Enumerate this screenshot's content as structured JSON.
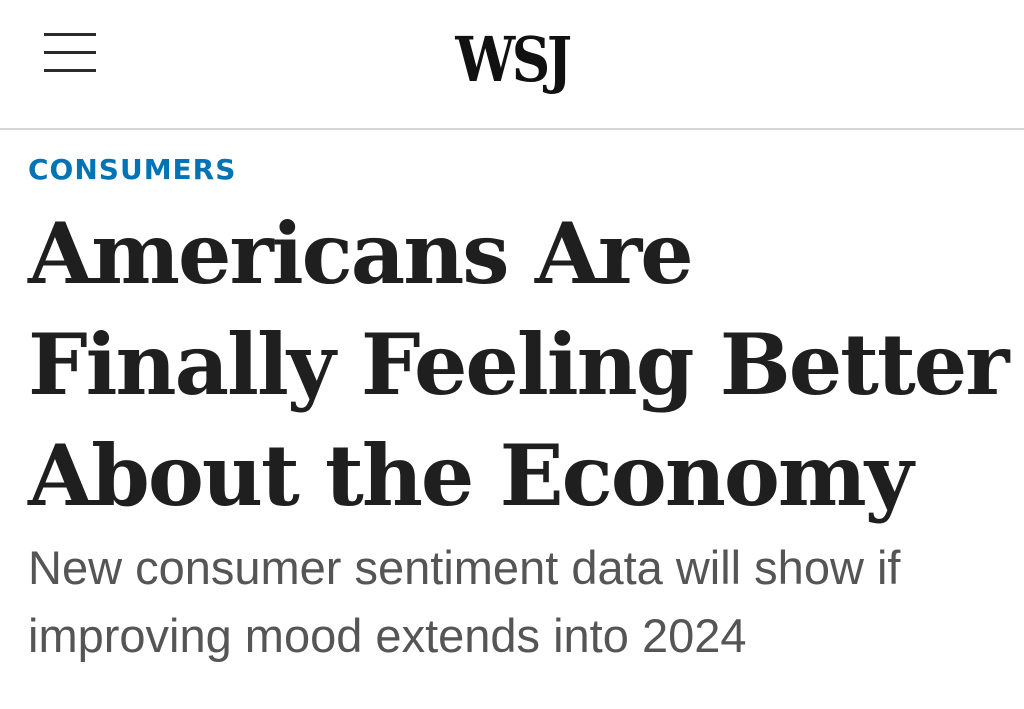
{
  "header": {
    "menu_icon": "hamburger-menu-icon",
    "logo_text": "WSJ"
  },
  "article": {
    "section": "CONSUMERS",
    "headline": "Americans Are Finally Feeling Better About the Economy",
    "dek": "New consumer sentiment data will show if improving mood extends into 2024"
  },
  "colors": {
    "section_accent": "#0274b6",
    "headline": "#1f1f1f",
    "dek": "#555555",
    "divider": "#d6d6d6"
  }
}
